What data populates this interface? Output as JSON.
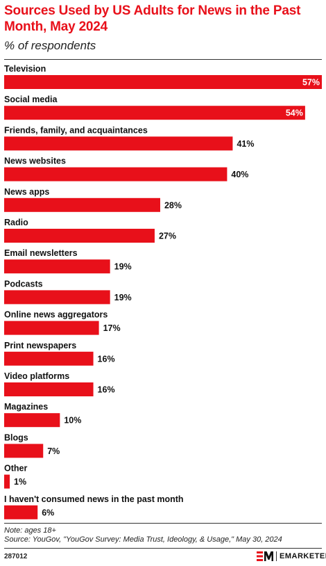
{
  "chart_data": {
    "type": "bar",
    "orientation": "horizontal",
    "title": "Sources Used by US Adults for News in the Past Month, May 2024",
    "subtitle": "% of respondents",
    "categories": [
      "Television",
      "Social media",
      "Friends, family, and acquaintances",
      "News websites",
      "News apps",
      "Radio",
      "Email newsletters",
      "Podcasts",
      "Online news aggregators",
      "Print newspapers",
      "Video platforms",
      "Magazines",
      "Blogs",
      "Other",
      "I haven't consumed news in the past month"
    ],
    "values": [
      57,
      54,
      41,
      40,
      28,
      27,
      19,
      19,
      17,
      16,
      16,
      10,
      7,
      1,
      6
    ],
    "value_labels": [
      "57%",
      "54%",
      "41%",
      "40%",
      "28%",
      "27%",
      "19%",
      "19%",
      "17%",
      "16%",
      "16%",
      "10%",
      "7%",
      "1%",
      "6%"
    ],
    "xlim": [
      0,
      57
    ],
    "grid": false,
    "bar_color": "#e8101a"
  },
  "footer": {
    "note": "Note: ages 18+",
    "source": "Source: YouGov, \"YouGov Survey: Media Trust, Ideology, & Usage,\" May 30, 2024",
    "chart_id": "287012",
    "brand": "EMARKETER"
  }
}
